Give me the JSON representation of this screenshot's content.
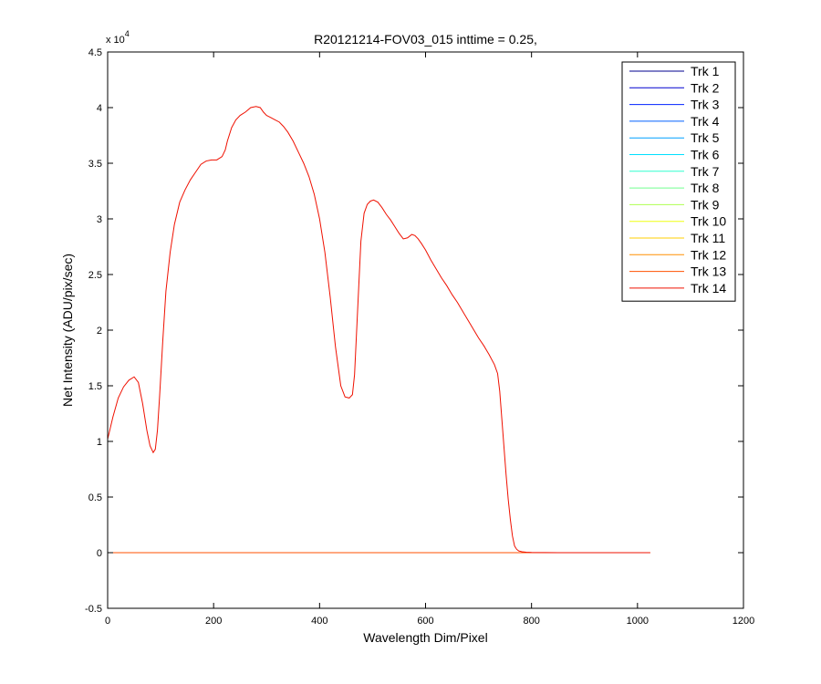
{
  "chart_data": {
    "type": "line",
    "title": "R20121214-FOV03_015 inttime = 0.25,",
    "xlabel": "Wavelength Dim/Pixel",
    "ylabel": "Net Intensity (ADU/pix/sec)",
    "xlim": [
      0,
      1200
    ],
    "ylim": [
      -5000,
      45000
    ],
    "x_ticks": [
      0,
      200,
      400,
      600,
      800,
      1000,
      1200
    ],
    "x_tick_labels": [
      "0",
      "200",
      "400",
      "600",
      "800",
      "1000",
      "1200"
    ],
    "y_ticks": [
      -5000,
      0,
      5000,
      10000,
      15000,
      20000,
      25000,
      30000,
      35000,
      40000,
      45000
    ],
    "y_tick_labels": [
      "-0.5",
      "0",
      "0.5",
      "1",
      "1.5",
      "2",
      "2.5",
      "3",
      "3.5",
      "4",
      "4.5"
    ],
    "y_exponent_label": "x 10",
    "y_exponent_power": "4",
    "grid": false,
    "legend_position": "top-right",
    "series": [
      {
        "name": "Trk 1",
        "color": "#00008f",
        "x": [
          0,
          1024
        ],
        "y": [
          0,
          0
        ]
      },
      {
        "name": "Trk 2",
        "color": "#0000cf",
        "x": [
          0,
          1024
        ],
        "y": [
          0,
          0
        ]
      },
      {
        "name": "Trk 3",
        "color": "#0020ff",
        "x": [
          0,
          1024
        ],
        "y": [
          0,
          0
        ]
      },
      {
        "name": "Trk 4",
        "color": "#0060ff",
        "x": [
          0,
          1024
        ],
        "y": [
          0,
          0
        ]
      },
      {
        "name": "Trk 5",
        "color": "#00a0ff",
        "x": [
          0,
          1024
        ],
        "y": [
          0,
          0
        ]
      },
      {
        "name": "Trk 6",
        "color": "#00e0ff",
        "x": [
          0,
          1024
        ],
        "y": [
          0,
          0
        ]
      },
      {
        "name": "Trk 7",
        "color": "#30ffcf",
        "x": [
          0,
          1024
        ],
        "y": [
          0,
          0
        ]
      },
      {
        "name": "Trk 8",
        "color": "#70ff8f",
        "x": [
          0,
          1024
        ],
        "y": [
          0,
          0
        ]
      },
      {
        "name": "Trk 9",
        "color": "#afff50",
        "x": [
          0,
          1024
        ],
        "y": [
          0,
          0
        ]
      },
      {
        "name": "Trk 10",
        "color": "#efff10",
        "x": [
          0,
          1024
        ],
        "y": [
          0,
          0
        ]
      },
      {
        "name": "Trk 11",
        "color": "#ffcf00",
        "x": [
          0,
          1024
        ],
        "y": [
          0,
          0
        ]
      },
      {
        "name": "Trk 12",
        "color": "#ff8f00",
        "x": [
          0,
          1024
        ],
        "y": [
          0,
          0
        ]
      },
      {
        "name": "Trk 13",
        "color": "#ff5000",
        "x": [
          0,
          1024
        ],
        "y": [
          0,
          0
        ]
      },
      {
        "name": "Trk 14",
        "color": "#ef1000",
        "x": [
          0,
          10,
          20,
          30,
          40,
          50,
          58,
          66,
          74,
          80,
          86,
          90,
          94,
          98,
          104,
          110,
          118,
          126,
          136,
          146,
          156,
          166,
          176,
          186,
          196,
          206,
          216,
          222,
          226,
          234,
          242,
          250,
          260,
          270,
          280,
          288,
          294,
          300,
          308,
          316,
          324,
          332,
          340,
          350,
          360,
          370,
          380,
          390,
          400,
          410,
          420,
          430,
          440,
          448,
          456,
          462,
          466,
          470,
          474,
          478,
          484,
          490,
          496,
          502,
          510,
          518,
          526,
          534,
          542,
          550,
          558,
          566,
          574,
          580,
          586,
          592,
          600,
          610,
          620,
          630,
          640,
          650,
          660,
          670,
          680,
          690,
          700,
          710,
          720,
          730,
          736,
          740,
          744,
          748,
          752,
          756,
          760,
          764,
          768,
          772,
          776,
          782,
          790,
          800,
          850,
          900,
          950,
          1000,
          1024
        ],
        "y": [
          10200,
          12200,
          13900,
          14900,
          15500,
          15800,
          15300,
          13400,
          11000,
          9600,
          9000,
          9300,
          11000,
          14000,
          19000,
          23500,
          27000,
          29500,
          31500,
          32600,
          33500,
          34200,
          34900,
          35200,
          35300,
          35300,
          35600,
          36200,
          37000,
          38200,
          38900,
          39300,
          39600,
          40000,
          40100,
          40000,
          39600,
          39300,
          39100,
          38900,
          38700,
          38300,
          37800,
          37000,
          36000,
          35000,
          33800,
          32200,
          30000,
          27000,
          23000,
          18500,
          15000,
          14000,
          13900,
          14200,
          16000,
          20000,
          24000,
          28000,
          30500,
          31300,
          31600,
          31700,
          31500,
          31000,
          30400,
          29900,
          29300,
          28700,
          28200,
          28300,
          28600,
          28500,
          28200,
          27800,
          27200,
          26300,
          25500,
          24700,
          24000,
          23200,
          22500,
          21700,
          20900,
          20100,
          19300,
          18600,
          17800,
          16900,
          16100,
          14500,
          12000,
          9500,
          7000,
          4800,
          3000,
          1500,
          600,
          300,
          150,
          80,
          40,
          20,
          0,
          0,
          0,
          0,
          0
        ]
      }
    ]
  }
}
